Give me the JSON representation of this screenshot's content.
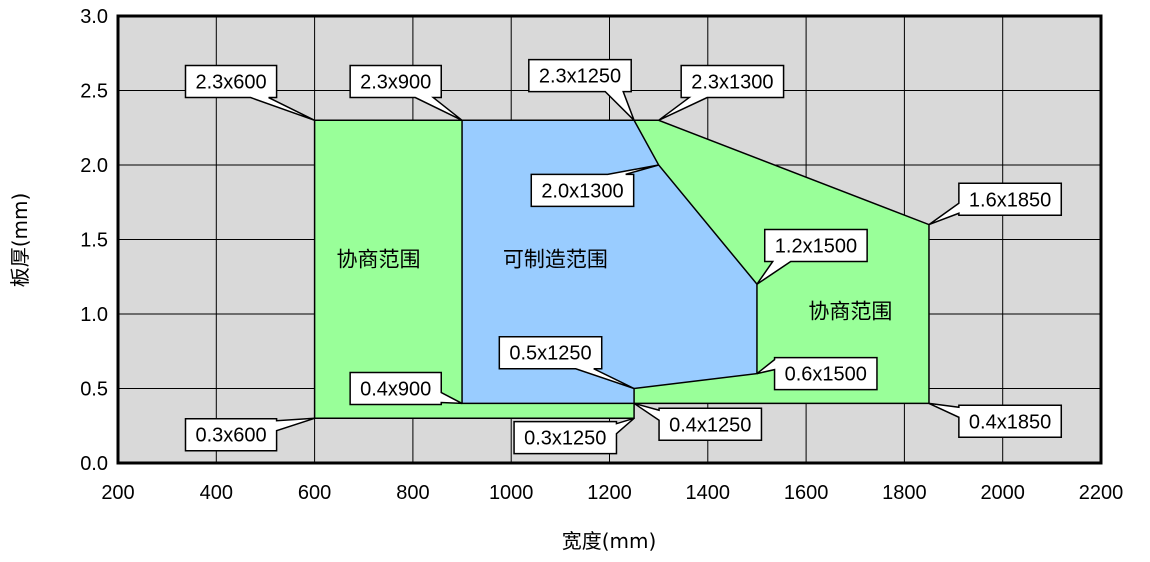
{
  "chart_data": {
    "type": "area",
    "xlabel": "宽度(mm)",
    "ylabel": "板厚(mm)",
    "xlim": [
      200,
      2200
    ],
    "ylim": [
      0.0,
      3.0
    ],
    "x_ticks": [
      "200",
      "400",
      "600",
      "800",
      "1000",
      "1200",
      "1400",
      "1600",
      "1800",
      "2000",
      "2200"
    ],
    "y_ticks": [
      "0.0",
      "0.5",
      "1.0",
      "1.5",
      "2.0",
      "2.5",
      "3.0"
    ],
    "grid": true,
    "colors": {
      "plot_background": "#d9d9d9",
      "negotiation_region": "#99ff99",
      "manufacturable_region": "#99ccff",
      "grid": "#000000"
    },
    "regions": [
      {
        "name": "协商范围",
        "color": "#99ff99",
        "points": [
          [
            600,
            0.3
          ],
          [
            600,
            2.3
          ],
          [
            1300,
            2.3
          ],
          [
            1850,
            1.6
          ],
          [
            1850,
            0.4
          ],
          [
            1250,
            0.4
          ],
          [
            1250,
            0.3
          ]
        ]
      },
      {
        "name": "可制造范围",
        "color": "#99ccff",
        "points": [
          [
            900,
            2.3
          ],
          [
            1250,
            2.3
          ],
          [
            1300,
            2.0
          ],
          [
            1500,
            1.2
          ],
          [
            1500,
            0.6
          ],
          [
            1250,
            0.5
          ],
          [
            1250,
            0.4
          ],
          [
            900,
            0.4
          ]
        ]
      }
    ],
    "region_labels": [
      {
        "text": "协商范围",
        "x": 730,
        "y": 1.32
      },
      {
        "text": "可制造范围",
        "x": 1090,
        "y": 1.32
      },
      {
        "text": "协商范围",
        "x": 1690,
        "y": 0.97
      }
    ],
    "annotations": [
      {
        "text": "2.3x600",
        "x": 600,
        "y": 2.3,
        "box_x": 430,
        "box_y": 2.56
      },
      {
        "text": "2.3x900",
        "x": 900,
        "y": 2.3,
        "box_x": 765,
        "box_y": 2.56
      },
      {
        "text": "2.3x1250",
        "x": 1250,
        "y": 2.3,
        "box_x": 1140,
        "box_y": 2.6
      },
      {
        "text": "2.3x1300",
        "x": 1300,
        "y": 2.3,
        "box_x": 1450,
        "box_y": 2.56
      },
      {
        "text": "2.0x1300",
        "x": 1300,
        "y": 2.0,
        "box_x": 1145,
        "box_y": 1.83
      },
      {
        "text": "1.6x1850",
        "x": 1850,
        "y": 1.6,
        "box_x": 2015,
        "box_y": 1.77
      },
      {
        "text": "1.2x1500",
        "x": 1500,
        "y": 1.2,
        "box_x": 1620,
        "box_y": 1.46
      },
      {
        "text": "0.5x1250",
        "x": 1250,
        "y": 0.5,
        "box_x": 1080,
        "box_y": 0.74
      },
      {
        "text": "0.6x1500",
        "x": 1500,
        "y": 0.6,
        "box_x": 1640,
        "box_y": 0.6
      },
      {
        "text": "0.4x900",
        "x": 900,
        "y": 0.4,
        "box_x": 765,
        "box_y": 0.5
      },
      {
        "text": "0.3x600",
        "x": 600,
        "y": 0.3,
        "box_x": 430,
        "box_y": 0.19
      },
      {
        "text": "0.3x1250",
        "x": 1250,
        "y": 0.3,
        "box_x": 1110,
        "box_y": 0.17
      },
      {
        "text": "0.4x1250",
        "x": 1250,
        "y": 0.4,
        "box_x": 1405,
        "box_y": 0.26
      },
      {
        "text": "0.4x1850",
        "x": 1850,
        "y": 0.4,
        "box_x": 2015,
        "box_y": 0.28
      }
    ]
  }
}
